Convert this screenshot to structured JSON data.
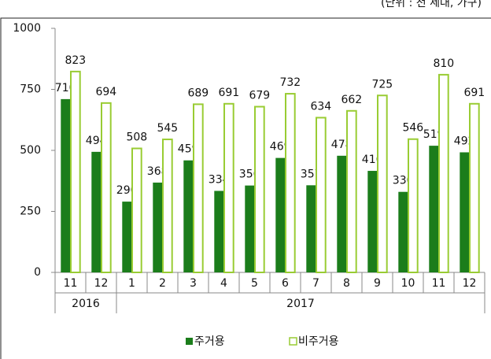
{
  "chart_data": {
    "type": "bar",
    "unit_note": "(단위 : 천 세대, 가구)",
    "categories": [
      "11",
      "12",
      "1",
      "2",
      "3",
      "4",
      "5",
      "6",
      "7",
      "8",
      "9",
      "10",
      "11",
      "12"
    ],
    "category_groups": [
      {
        "label": "2016",
        "count": 2
      },
      {
        "label": "2017",
        "count": 12
      }
    ],
    "series": [
      {
        "name": "주거용",
        "color": "#1b7d1b",
        "style": "filled",
        "values": [
          710,
          494,
          290,
          368,
          459,
          334,
          356,
          469,
          357,
          478,
          416,
          330,
          519,
          492
        ]
      },
      {
        "name": "비주거용",
        "color": "#99cc33",
        "style": "outline",
        "values": [
          823,
          694,
          508,
          545,
          689,
          691,
          679,
          732,
          634,
          662,
          725,
          546,
          810,
          691
        ]
      }
    ],
    "ylim": [
      0,
      1000
    ],
    "yticks": [
      0,
      250,
      500,
      750,
      1000
    ],
    "grid": false
  }
}
